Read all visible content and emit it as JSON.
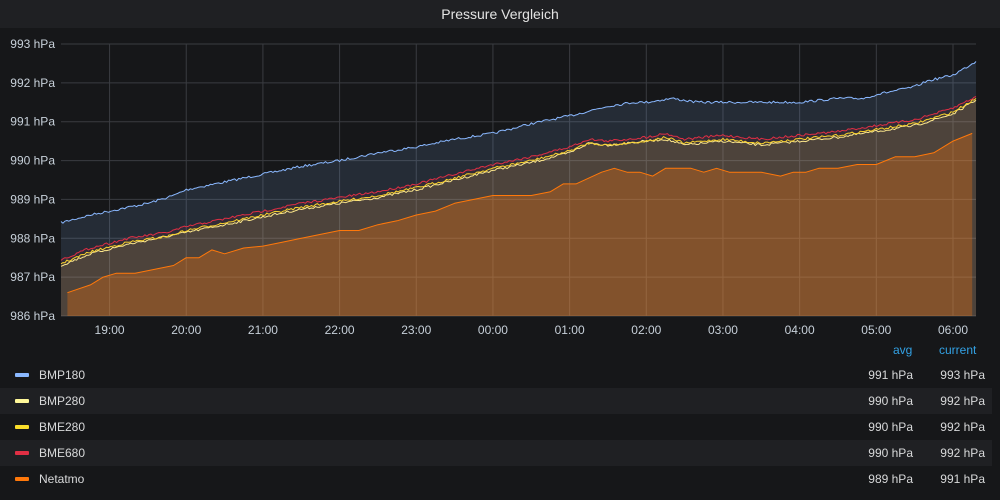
{
  "panel": {
    "title": "Pressure Vergleich"
  },
  "legend": {
    "avg_header": "avg",
    "current_header": "current",
    "rows": [
      {
        "name": "BMP180",
        "color": "#8ab8ff",
        "avg": "991 hPa",
        "current": "993 hPa"
      },
      {
        "name": "BMP280",
        "color": "#fff899",
        "avg": "990 hPa",
        "current": "992 hPa"
      },
      {
        "name": "BME280",
        "color": "#fade2a",
        "avg": "990 hPa",
        "current": "992 hPa"
      },
      {
        "name": "BME680",
        "color": "#e02f44",
        "avg": "990 hPa",
        "current": "992 hPa"
      },
      {
        "name": "Netatmo",
        "color": "#ff780a",
        "avg": "989 hPa",
        "current": "991 hPa"
      }
    ]
  },
  "chart_data": {
    "type": "area",
    "title": "Pressure Vergleich",
    "xlabel": "",
    "ylabel": "",
    "ylim": [
      986,
      993
    ],
    "xlim": [
      "18:22",
      "06:18"
    ],
    "y_ticks": [
      "986 hPa",
      "987 hPa",
      "988 hPa",
      "989 hPa",
      "990 hPa",
      "991 hPa",
      "992 hPa",
      "993 hPa"
    ],
    "x_ticks": [
      "19:00",
      "20:00",
      "21:00",
      "22:00",
      "23:00",
      "00:00",
      "01:00",
      "02:00",
      "03:00",
      "04:00",
      "05:00",
      "06:00"
    ],
    "grid": true,
    "legend_position": "bottom",
    "series": [
      {
        "name": "BMP180",
        "color": "#8ab8ff",
        "x": [
          "18:22",
          "18:45",
          "19:15",
          "19:30",
          "19:50",
          "20:00",
          "20:30",
          "21:00",
          "21:30",
          "22:00",
          "22:30",
          "23:00",
          "23:30",
          "00:00",
          "00:30",
          "01:00",
          "01:30",
          "01:50",
          "02:00",
          "02:20",
          "02:40",
          "03:00",
          "03:30",
          "04:00",
          "04:30",
          "04:50",
          "05:00",
          "05:30",
          "05:40",
          "06:00",
          "06:18"
        ],
        "values": [
          988.4,
          988.6,
          988.8,
          988.9,
          989.1,
          989.25,
          989.45,
          989.65,
          989.85,
          990.0,
          990.2,
          990.35,
          990.55,
          990.7,
          990.95,
          991.15,
          991.4,
          991.5,
          991.5,
          991.6,
          991.5,
          991.5,
          991.5,
          991.5,
          991.6,
          991.6,
          991.7,
          991.9,
          992.05,
          992.2,
          992.55
        ]
      },
      {
        "name": "BMP280",
        "color": "#fff899",
        "x": [
          "18:22",
          "18:45",
          "19:15",
          "19:45",
          "20:00",
          "20:30",
          "21:00",
          "21:30",
          "22:00",
          "22:30",
          "23:00",
          "23:30",
          "00:00",
          "00:30",
          "01:00",
          "01:15",
          "01:30",
          "02:00",
          "02:15",
          "02:30",
          "03:00",
          "03:30",
          "04:00",
          "04:30",
          "05:00",
          "05:30",
          "06:00",
          "06:18"
        ],
        "values": [
          987.3,
          987.6,
          987.85,
          988.05,
          988.15,
          988.35,
          988.55,
          988.75,
          988.9,
          989.05,
          989.25,
          989.5,
          989.75,
          989.95,
          990.2,
          990.45,
          990.4,
          990.5,
          990.55,
          990.4,
          990.5,
          990.4,
          990.5,
          990.6,
          990.75,
          990.9,
          991.2,
          991.55
        ]
      },
      {
        "name": "BME280",
        "color": "#fade2a",
        "x": [
          "18:22",
          "18:45",
          "19:15",
          "19:45",
          "20:00",
          "20:30",
          "21:00",
          "21:30",
          "22:00",
          "22:30",
          "23:00",
          "23:30",
          "00:00",
          "00:30",
          "01:00",
          "01:15",
          "01:30",
          "02:00",
          "02:15",
          "02:30",
          "03:00",
          "03:30",
          "04:00",
          "04:30",
          "05:00",
          "05:30",
          "06:00",
          "06:18"
        ],
        "values": [
          987.35,
          987.65,
          987.9,
          988.05,
          988.2,
          988.4,
          988.6,
          988.8,
          988.95,
          989.1,
          989.3,
          989.55,
          989.8,
          990.0,
          990.25,
          990.45,
          990.4,
          990.5,
          990.6,
          990.45,
          990.55,
          990.45,
          990.55,
          990.65,
          990.8,
          990.95,
          991.25,
          991.6
        ]
      },
      {
        "name": "BME680",
        "color": "#e02f44",
        "x": [
          "18:22",
          "18:45",
          "19:15",
          "19:45",
          "20:00",
          "20:30",
          "21:00",
          "21:30",
          "22:00",
          "22:30",
          "23:00",
          "23:30",
          "00:00",
          "00:30",
          "01:00",
          "01:15",
          "01:30",
          "02:00",
          "02:15",
          "02:30",
          "03:00",
          "03:30",
          "04:00",
          "04:30",
          "05:00",
          "05:30",
          "06:00",
          "06:18"
        ],
        "values": [
          987.45,
          987.75,
          988.0,
          988.15,
          988.3,
          988.5,
          988.7,
          988.9,
          989.05,
          989.2,
          989.4,
          989.65,
          989.9,
          990.1,
          990.35,
          990.55,
          990.5,
          990.6,
          990.7,
          990.55,
          990.65,
          990.55,
          990.65,
          990.75,
          990.9,
          991.05,
          991.35,
          991.65
        ]
      },
      {
        "name": "Netatmo",
        "color": "#ff780a",
        "x": [
          "18:27",
          "18:45",
          "18:55",
          "19:05",
          "19:20",
          "19:35",
          "19:50",
          "20:00",
          "20:10",
          "20:20",
          "20:30",
          "20:45",
          "21:00",
          "21:15",
          "21:30",
          "21:45",
          "22:00",
          "22:15",
          "22:30",
          "22:45",
          "23:00",
          "23:15",
          "23:30",
          "23:45",
          "00:00",
          "00:15",
          "00:30",
          "00:45",
          "00:55",
          "01:05",
          "01:15",
          "01:25",
          "01:35",
          "01:45",
          "01:55",
          "02:05",
          "02:15",
          "02:25",
          "02:35",
          "02:45",
          "02:55",
          "03:05",
          "03:15",
          "03:30",
          "03:45",
          "03:55",
          "04:05",
          "04:15",
          "04:30",
          "04:45",
          "05:00",
          "05:15",
          "05:30",
          "05:45",
          "06:00",
          "06:15"
        ],
        "values": [
          986.6,
          986.8,
          987.0,
          987.1,
          987.1,
          987.2,
          987.3,
          987.5,
          987.5,
          987.7,
          987.6,
          987.75,
          987.8,
          987.9,
          988.0,
          988.1,
          988.2,
          988.2,
          988.35,
          988.45,
          988.6,
          988.7,
          988.9,
          989.0,
          989.1,
          989.1,
          989.1,
          989.2,
          989.4,
          989.4,
          989.55,
          989.7,
          989.8,
          989.7,
          989.7,
          989.6,
          989.8,
          989.8,
          989.8,
          989.7,
          989.8,
          989.7,
          989.7,
          989.7,
          989.6,
          989.7,
          989.7,
          989.8,
          989.8,
          989.9,
          989.9,
          990.1,
          990.1,
          990.2,
          990.5,
          990.7
        ]
      }
    ]
  }
}
